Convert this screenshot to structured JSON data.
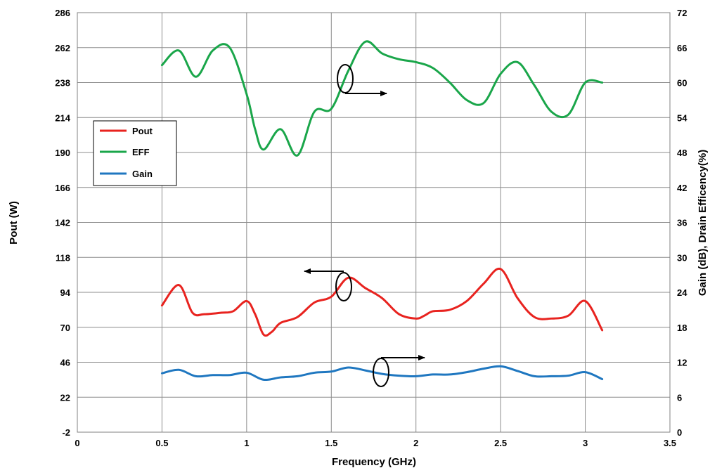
{
  "chart_data": {
    "type": "line",
    "xlabel": "Frequency (GHz)",
    "ylabel_left": "Pout (W)",
    "ylabel_right": "Gain (dB), Drain Efficency(%)",
    "xlim": [
      0,
      3.5
    ],
    "x_ticks": [
      "0",
      "0.5",
      "1",
      "1.5",
      "2",
      "2.5",
      "3",
      "3.5"
    ],
    "ylim_left": [
      -2,
      286
    ],
    "y_ticks_left": [
      "-2",
      "22",
      "46",
      "70",
      "94",
      "118",
      "142",
      "166",
      "190",
      "214",
      "238",
      "262",
      "286"
    ],
    "ylim_right": [
      0,
      72
    ],
    "y_ticks_right": [
      "0",
      "6",
      "12",
      "18",
      "24",
      "30",
      "36",
      "42",
      "48",
      "54",
      "60",
      "66",
      "72"
    ],
    "grid": true,
    "legend_position": "upper-left",
    "series": [
      {
        "name": "Pout",
        "axis": "left",
        "color": "#e8231f",
        "x": [
          0.5,
          0.6,
          0.68,
          0.75,
          0.85,
          0.92,
          1.0,
          1.05,
          1.1,
          1.15,
          1.2,
          1.3,
          1.4,
          1.5,
          1.6,
          1.7,
          1.8,
          1.9,
          2.0,
          2.05,
          2.1,
          2.2,
          2.3,
          2.4,
          2.5,
          2.6,
          2.7,
          2.8,
          2.9,
          3.0,
          3.1
        ],
        "y": [
          85,
          99,
          80,
          79,
          80,
          81,
          88,
          79,
          65,
          67,
          73,
          77,
          87,
          91,
          104,
          97,
          90,
          79,
          76,
          78,
          81,
          82,
          88,
          100,
          110,
          90,
          77,
          76,
          78,
          88,
          68
        ]
      },
      {
        "name": "EFF",
        "axis": "right",
        "color": "#1aa64a",
        "x": [
          0.5,
          0.6,
          0.7,
          0.8,
          0.9,
          1.0,
          1.05,
          1.1,
          1.2,
          1.3,
          1.4,
          1.5,
          1.6,
          1.7,
          1.8,
          1.9,
          2.0,
          2.1,
          2.2,
          2.3,
          2.4,
          2.5,
          2.6,
          2.7,
          2.8,
          2.9,
          3.0,
          3.1
        ],
        "y": [
          63,
          65.5,
          61,
          65.5,
          66,
          58,
          52,
          48.5,
          52,
          47.5,
          55,
          55.5,
          62,
          67,
          65,
          64,
          63.5,
          62.5,
          60,
          57,
          56.5,
          61.5,
          63.5,
          59.5,
          55,
          54.5,
          60,
          60
        ]
      },
      {
        "name": "Gain",
        "axis": "right",
        "color": "#1f77c0",
        "x": [
          0.5,
          0.6,
          0.7,
          0.8,
          0.9,
          1.0,
          1.1,
          1.2,
          1.3,
          1.4,
          1.5,
          1.6,
          1.7,
          1.8,
          1.9,
          2.0,
          2.1,
          2.2,
          2.3,
          2.4,
          2.5,
          2.6,
          2.7,
          2.8,
          2.9,
          3.0,
          3.1
        ],
        "y": [
          10.1,
          10.7,
          9.6,
          9.8,
          9.8,
          10.2,
          9,
          9.4,
          9.6,
          10.2,
          10.4,
          11.1,
          10.6,
          10,
          9.7,
          9.6,
          9.9,
          9.9,
          10.3,
          10.9,
          11.3,
          10.5,
          9.6,
          9.6,
          9.7,
          10.3,
          9.1
        ]
      }
    ]
  }
}
